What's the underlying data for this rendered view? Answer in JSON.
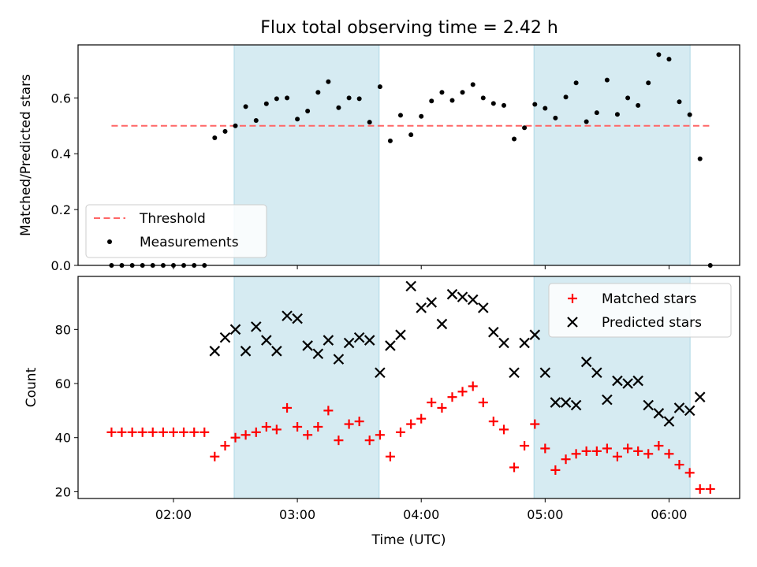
{
  "chart_data": {
    "title": "Flux total observing time = 2.42 h",
    "shaded_spans_hours": [
      [
        2.49,
        3.66
      ],
      [
        4.91,
        6.17
      ]
    ],
    "shade_color": "#add8e6",
    "panels": [
      {
        "type": "scatter",
        "ylabel": "Matched/Predicted stars",
        "xlim": [
          1.23,
          6.57
        ],
        "ylim": [
          0.0,
          0.79
        ],
        "yticks": [
          "0.0",
          "0.2",
          "0.4",
          "0.6"
        ],
        "legend_location": "lower-left",
        "threshold": {
          "name": "Threshold",
          "value": 0.5,
          "x_range": [
            1.5,
            6.33
          ],
          "color": "#ff6666",
          "style": "dashed"
        },
        "series": [
          {
            "name": "Measurements",
            "color": "#000000",
            "marker": "dot",
            "x": [
              1.5,
              1.583,
              1.667,
              1.75,
              1.833,
              1.917,
              2.0,
              2.083,
              2.167,
              2.25,
              2.333,
              2.417,
              2.5,
              2.583,
              2.667,
              2.75,
              2.833,
              2.917,
              3.0,
              3.083,
              3.167,
              3.25,
              3.333,
              3.417,
              3.5,
              3.583,
              3.667,
              3.75,
              3.833,
              3.917,
              4.0,
              4.083,
              4.167,
              4.25,
              4.333,
              4.417,
              4.5,
              4.583,
              4.667,
              4.75,
              4.833,
              4.917,
              5.0,
              5.083,
              5.167,
              5.25,
              5.333,
              5.417,
              5.5,
              5.583,
              5.667,
              5.75,
              5.833,
              5.917,
              6.0,
              6.083,
              6.167,
              6.25,
              6.333
            ],
            "y": [
              0.0,
              0.0,
              0.0,
              0.0,
              0.0,
              0.0,
              0.0,
              0.0,
              0.0,
              0.0,
              0.457,
              0.48,
              0.5,
              0.569,
              0.519,
              0.579,
              0.597,
              0.6,
              0.524,
              0.553,
              0.62,
              0.658,
              0.565,
              0.6,
              0.597,
              0.513,
              0.64,
              0.446,
              0.538,
              0.468,
              0.534,
              0.589,
              0.62,
              0.591,
              0.62,
              0.648,
              0.6,
              0.58,
              0.573,
              0.453,
              0.493,
              0.577,
              0.563,
              0.528,
              0.603,
              0.654,
              0.515,
              0.547,
              0.664,
              0.541,
              0.6,
              0.573,
              0.654,
              0.755,
              0.739,
              0.586,
              0.54,
              0.382,
              0.0
            ]
          }
        ]
      },
      {
        "type": "scatter",
        "ylabel": "Count",
        "xlabel": "Time (UTC)",
        "xlim": [
          1.23,
          6.57
        ],
        "ylim": [
          17.5,
          99.6
        ],
        "xticks": [
          "02:00",
          "03:00",
          "04:00",
          "05:00",
          "06:00"
        ],
        "xtick_values": [
          2,
          3,
          4,
          5,
          6
        ],
        "yticks": [
          "20",
          "40",
          "60",
          "80"
        ],
        "ytick_values": [
          20,
          40,
          60,
          80
        ],
        "legend_location": "upper-right",
        "series": [
          {
            "name": "Matched stars",
            "color": "#ff0000",
            "marker": "plus",
            "x": [
              1.5,
              1.583,
              1.667,
              1.75,
              1.833,
              1.917,
              2.0,
              2.083,
              2.167,
              2.25,
              2.333,
              2.417,
              2.5,
              2.583,
              2.667,
              2.75,
              2.833,
              2.917,
              3.0,
              3.083,
              3.167,
              3.25,
              3.333,
              3.417,
              3.5,
              3.583,
              3.667,
              3.75,
              3.833,
              3.917,
              4.0,
              4.083,
              4.167,
              4.25,
              4.333,
              4.417,
              4.5,
              4.583,
              4.667,
              4.75,
              4.833,
              4.917,
              5.0,
              5.083,
              5.167,
              5.25,
              5.333,
              5.417,
              5.5,
              5.583,
              5.667,
              5.75,
              5.833,
              5.917,
              6.0,
              6.083,
              6.167,
              6.25,
              6.333
            ],
            "y": [
              42,
              42,
              42,
              42,
              42,
              42,
              42,
              42,
              42,
              42,
              33,
              37,
              40,
              41,
              42,
              44,
              43,
              51,
              44,
              41,
              44,
              50,
              39,
              45,
              46,
              39,
              41,
              33,
              42,
              45,
              47,
              53,
              51,
              55,
              57,
              59,
              53,
              46,
              43,
              29,
              37,
              45,
              36,
              28,
              32,
              34,
              35,
              35,
              36,
              33,
              36,
              35,
              34,
              37,
              34,
              30,
              27,
              21,
              21
            ]
          },
          {
            "name": "Predicted stars",
            "color": "#000000",
            "marker": "cross",
            "x": [
              2.333,
              2.417,
              2.5,
              2.583,
              2.667,
              2.75,
              2.833,
              2.917,
              3.0,
              3.083,
              3.167,
              3.25,
              3.333,
              3.417,
              3.5,
              3.583,
              3.667,
              3.75,
              3.833,
              3.917,
              4.0,
              4.083,
              4.167,
              4.25,
              4.333,
              4.417,
              4.5,
              4.583,
              4.667,
              4.75,
              4.833,
              4.917,
              5.0,
              5.083,
              5.167,
              5.25,
              5.333,
              5.417,
              5.5,
              5.583,
              5.667,
              5.75,
              5.833,
              5.917,
              6.0,
              6.083,
              6.167,
              6.25
            ],
            "y": [
              72,
              77,
              80,
              72,
              81,
              76,
              72,
              85,
              84,
              74,
              71,
              76,
              69,
              75,
              77,
              76,
              64,
              74,
              78,
              96,
              88,
              90,
              82,
              93,
              92,
              91,
              88,
              79,
              75,
              64,
              75,
              78,
              64,
              53,
              53,
              52,
              68,
              64,
              54,
              61,
              60,
              61,
              52,
              49,
              46,
              51,
              50,
              55
            ]
          }
        ]
      }
    ]
  }
}
